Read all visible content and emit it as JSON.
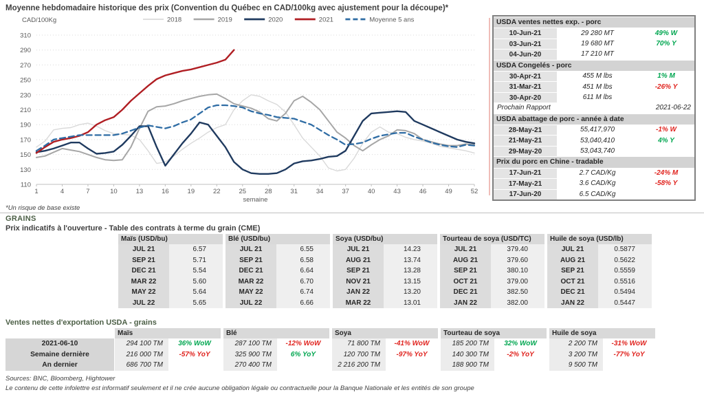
{
  "chart": {
    "title": "Moyenne hebdomadaire historique des prix (Convention du Québec en CAD/100kg avec ajustement pour la découpe)*",
    "footnote": "*Un risque de base existe"
  },
  "chart_data": {
    "type": "line",
    "title": "Moyenne hebdomadaire historique des prix (Convention du Québec en CAD/100kg avec ajustement pour la découpe)*",
    "xlabel": "semaine",
    "ylabel": "CAD/100Kg",
    "ylim": [
      110,
      310
    ],
    "ytick_step": 20,
    "xticks": [
      1,
      4,
      7,
      10,
      13,
      16,
      19,
      22,
      25,
      28,
      31,
      34,
      37,
      40,
      43,
      46,
      49,
      52
    ],
    "x_start": 1,
    "x_end": 52,
    "grid": "dotted-horizontal",
    "legend_position": "top",
    "series": [
      {
        "name": "2018",
        "color": "#d9d9d9",
        "dash": false,
        "values": [
          160,
          168,
          183,
          185,
          186,
          190,
          192,
          188,
          182,
          178,
          177,
          176,
          170,
          155,
          138,
          140,
          148,
          157,
          165,
          172,
          180,
          186,
          190,
          210,
          222,
          230,
          228,
          222,
          217,
          207,
          190,
          172,
          160,
          148,
          132,
          128,
          130,
          145,
          165,
          180,
          187,
          180,
          178,
          173,
          170,
          168,
          165,
          161,
          159,
          157,
          155,
          152
        ]
      },
      {
        "name": "2019",
        "color": "#a6a6a6",
        "dash": false,
        "values": [
          146,
          148,
          153,
          158,
          156,
          154,
          150,
          146,
          143,
          142,
          143,
          160,
          185,
          208,
          214,
          215,
          218,
          222,
          225,
          228,
          230,
          231,
          225,
          218,
          215,
          212,
          207,
          198,
          195,
          205,
          222,
          228,
          220,
          210,
          195,
          180,
          172,
          162,
          155,
          163,
          170,
          175,
          183,
          182,
          178,
          170,
          167,
          164,
          162,
          162,
          164,
          163
        ]
      },
      {
        "name": "2020",
        "color": "#1f3a5f",
        "dash": false,
        "values": [
          153,
          155,
          158,
          162,
          166,
          166,
          158,
          151,
          152,
          154,
          163,
          175,
          188,
          188,
          160,
          135,
          150,
          165,
          178,
          193,
          190,
          175,
          160,
          140,
          130,
          125,
          124,
          124,
          125,
          130,
          138,
          141,
          142,
          144,
          147,
          148,
          155,
          175,
          195,
          205,
          206,
          207,
          208,
          207,
          195,
          190,
          185,
          180,
          175,
          170,
          167,
          165
        ]
      },
      {
        "name": "2021",
        "color": "#b01e23",
        "dash": false,
        "values": [
          152,
          160,
          167,
          170,
          172,
          175,
          180,
          190,
          196,
          200,
          210,
          222,
          232,
          242,
          251,
          256,
          259,
          262,
          264,
          267,
          270,
          273,
          277,
          290
        ]
      },
      {
        "name": "Moyenne 5 ans",
        "color": "#2e6ca4",
        "dash": true,
        "values": [
          155,
          162,
          170,
          172,
          174,
          176,
          176,
          176,
          176,
          176,
          178,
          182,
          186,
          189,
          187,
          185,
          188,
          193,
          197,
          205,
          213,
          216,
          216,
          215,
          213,
          208,
          205,
          203,
          200,
          199,
          198,
          194,
          190,
          183,
          176,
          170,
          163,
          164,
          166,
          171,
          175,
          177,
          179,
          179,
          174,
          170,
          166,
          163,
          161,
          160,
          163,
          162
        ]
      }
    ]
  },
  "side_panel": {
    "blocks": [
      {
        "type": "section",
        "title": "USDA ventes nettes exp. - porc",
        "rows": [
          {
            "date": "10-Jun-21",
            "value": "29 280  MT",
            "change": "49% W",
            "dir": "green"
          },
          {
            "date": "03-Jun-21",
            "value": "19 680  MT",
            "change": "70% Y",
            "dir": "green"
          },
          {
            "date": "04-Jun-20",
            "value": "17 210  MT",
            "change": "",
            "dir": ""
          }
        ]
      },
      {
        "type": "section",
        "title": "USDA Congelés - porc",
        "rows": [
          {
            "date": "30-Apr-21",
            "value": "455 M lbs",
            "change": "1% M",
            "dir": "green"
          },
          {
            "date": "31-Mar-21",
            "value": "451 M lbs",
            "change": "-26% Y",
            "dir": "red"
          },
          {
            "date": "30-Apr-20",
            "value": "611 M lbs",
            "change": "",
            "dir": ""
          }
        ]
      },
      {
        "type": "note",
        "label": "Prochain Rapport",
        "value": "2021-06-22"
      },
      {
        "type": "section",
        "title": "USDA abattage de porc - année à date",
        "rows": [
          {
            "date": "28-May-21",
            "value": "55,417,970",
            "change": "-1% W",
            "dir": "red"
          },
          {
            "date": "21-May-21",
            "value": "53,040,410",
            "change": "4% Y",
            "dir": "green"
          },
          {
            "date": "29-May-20",
            "value": "53,043,740",
            "change": "",
            "dir": ""
          }
        ]
      },
      {
        "type": "section",
        "title": "Prix du porc en Chine - tradable",
        "rows": [
          {
            "date": "17-Jun-21",
            "value": "2.7 CAD/Kg",
            "change": "-24% M",
            "dir": "red"
          },
          {
            "date": "17-May-21",
            "value": "3.6 CAD/Kg",
            "change": "-58% Y",
            "dir": "red"
          },
          {
            "date": "17-Jun-20",
            "value": "6.5 CAD/Kg",
            "change": "",
            "dir": ""
          }
        ]
      }
    ]
  },
  "grains": {
    "section_title": "GRAINS",
    "subtitle": "Prix indicatifs à l'ouverture - Table des contrats à terme du grain (CME)",
    "futures": [
      {
        "commodity": "Maïs (USD/bu)",
        "rows": [
          [
            "JUL 21",
            "6.57"
          ],
          [
            "SEP 21",
            "5.71"
          ],
          [
            "DEC 21",
            "5.54"
          ],
          [
            "MAR 22",
            "5.60"
          ],
          [
            "MAY 22",
            "5.64"
          ],
          [
            "JUL 22",
            "5.65"
          ]
        ]
      },
      {
        "commodity": "Blé (USD/bu)",
        "rows": [
          [
            "JUL 21",
            "6.55"
          ],
          [
            "SEP 21",
            "6.58"
          ],
          [
            "DEC 21",
            "6.64"
          ],
          [
            "MAR 22",
            "6.70"
          ],
          [
            "MAY 22",
            "6.74"
          ],
          [
            "JUL 22",
            "6.66"
          ]
        ]
      },
      {
        "commodity": "Soya (USD/bu)",
        "rows": [
          [
            "JUL 21",
            "14.23"
          ],
          [
            "AUG 21",
            "13.74"
          ],
          [
            "SEP 21",
            "13.28"
          ],
          [
            "NOV 21",
            "13.15"
          ],
          [
            "JAN 22",
            "13.20"
          ],
          [
            "MAR 22",
            "13.01"
          ]
        ]
      },
      {
        "commodity": "Tourteau de soya (USD/TC)",
        "rows": [
          [
            "JUL 21",
            "379.40"
          ],
          [
            "AUG 21",
            "379.60"
          ],
          [
            "SEP 21",
            "380.10"
          ],
          [
            "OCT 21",
            "379.00"
          ],
          [
            "DEC 21",
            "382.50"
          ],
          [
            "JAN 22",
            "382.00"
          ]
        ]
      },
      {
        "commodity": "Huile de soya (USD/lb)",
        "rows": [
          [
            "JUL 21",
            "0.5877"
          ],
          [
            "AUG 21",
            "0.5622"
          ],
          [
            "SEP 21",
            "0.5559"
          ],
          [
            "OCT 21",
            "0.5516"
          ],
          [
            "DEC 21",
            "0.5494"
          ],
          [
            "JAN 22",
            "0.5447"
          ]
        ]
      }
    ]
  },
  "exports": {
    "section_title": "Ventes nettes d'exportation USDA - grains",
    "row_labels": [
      "2021-06-10",
      "Semaine dernière",
      "An dernier"
    ],
    "columns": [
      {
        "commodity": "Maïs",
        "cells": [
          {
            "value": "294 100 TM",
            "change": "36% WoW",
            "dir": "green"
          },
          {
            "value": "216 000 TM",
            "change": "-57% YoY",
            "dir": "red"
          },
          {
            "value": "686 700 TM",
            "change": "",
            "dir": ""
          }
        ]
      },
      {
        "commodity": "Blé",
        "cells": [
          {
            "value": "287 100 TM",
            "change": "-12% WoW",
            "dir": "red"
          },
          {
            "value": "325 900 TM",
            "change": "6% YoY",
            "dir": "green"
          },
          {
            "value": "270 400 TM",
            "change": "",
            "dir": ""
          }
        ]
      },
      {
        "commodity": "Soya",
        "cells": [
          {
            "value": "71 800 TM",
            "change": "-41% WoW",
            "dir": "red"
          },
          {
            "value": "120 700 TM",
            "change": "-97% YoY",
            "dir": "red"
          },
          {
            "value": "2 216 200 TM",
            "change": "",
            "dir": ""
          }
        ]
      },
      {
        "commodity": "Tourteau de soya",
        "cells": [
          {
            "value": "185 200 TM",
            "change": "32% WoW",
            "dir": "green"
          },
          {
            "value": "140 300 TM",
            "change": "-2% YoY",
            "dir": "red"
          },
          {
            "value": "188 900 TM",
            "change": "",
            "dir": ""
          }
        ]
      },
      {
        "commodity": "Huile de soya",
        "cells": [
          {
            "value": "2 200 TM",
            "change": "-31% WoW",
            "dir": "red"
          },
          {
            "value": "3 200 TM",
            "change": "-77% YoY",
            "dir": "red"
          },
          {
            "value": "9 500 TM",
            "change": "",
            "dir": ""
          }
        ]
      }
    ]
  },
  "footer": {
    "sources": "Sources: BNC, Bloomberg, Hightower",
    "disclaimer": "Le contenu de cette infolettre est informatif seulement et il ne crée aucune obligation légale ou contractuelle pour la Banque Nationale et les entités de son groupe"
  },
  "colors": {
    "positive": "#00a650",
    "negative": "#e0241f",
    "heading_green": "#4c5f46",
    "panel_border": "#7f7f7f",
    "series_2018": "#d9d9d9",
    "series_2019": "#a6a6a6",
    "series_2020": "#1f3a5f",
    "series_2021": "#b01e23",
    "series_avg5": "#2e6ca4"
  }
}
